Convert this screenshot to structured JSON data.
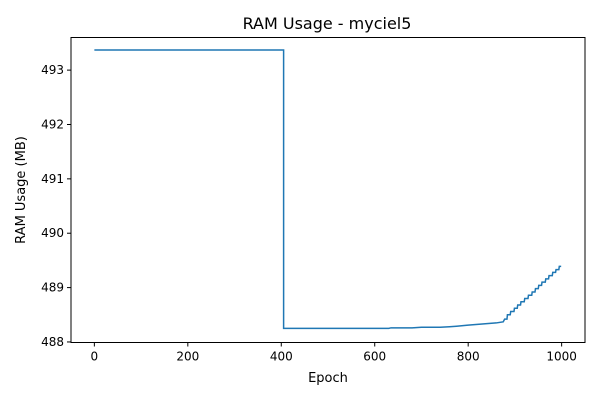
{
  "chart_data": {
    "type": "line",
    "title": "RAM Usage - myciel5",
    "xlabel": "Epoch",
    "ylabel": "RAM Usage (MB)",
    "xlim": [
      -50,
      1050
    ],
    "ylim": [
      487.99,
      493.6
    ],
    "xticks": [
      0,
      200,
      400,
      600,
      800,
      1000
    ],
    "yticks": [
      488,
      489,
      490,
      491,
      492,
      493
    ],
    "grid": false,
    "line_color": "#1f77b4",
    "series": [
      {
        "points": [
          [
            0,
            493.37
          ],
          [
            405,
            493.37
          ],
          [
            405,
            488.25
          ],
          [
            630,
            488.25
          ],
          [
            635,
            488.26
          ],
          [
            680,
            488.26
          ],
          [
            700,
            488.27
          ],
          [
            740,
            488.27
          ],
          [
            760,
            488.28
          ],
          [
            775,
            488.29
          ],
          [
            800,
            488.31
          ],
          [
            830,
            488.33
          ],
          [
            860,
            488.35
          ],
          [
            875,
            488.37
          ],
          [
            878,
            488.42
          ],
          [
            883,
            488.42
          ],
          [
            884,
            488.5
          ],
          [
            890,
            488.5
          ],
          [
            891,
            488.56
          ],
          [
            898,
            488.56
          ],
          [
            899,
            488.62
          ],
          [
            905,
            488.62
          ],
          [
            906,
            488.68
          ],
          [
            912,
            488.68
          ],
          [
            913,
            488.74
          ],
          [
            920,
            488.74
          ],
          [
            921,
            488.8
          ],
          [
            928,
            488.8
          ],
          [
            929,
            488.86
          ],
          [
            936,
            488.86
          ],
          [
            937,
            488.92
          ],
          [
            943,
            488.92
          ],
          [
            944,
            488.98
          ],
          [
            950,
            488.98
          ],
          [
            951,
            489.04
          ],
          [
            957,
            489.04
          ],
          [
            958,
            489.1
          ],
          [
            965,
            489.1
          ],
          [
            966,
            489.16
          ],
          [
            972,
            489.16
          ],
          [
            973,
            489.22
          ],
          [
            980,
            489.22
          ],
          [
            981,
            489.28
          ],
          [
            987,
            489.28
          ],
          [
            988,
            489.33
          ],
          [
            994,
            489.33
          ],
          [
            995,
            489.39
          ],
          [
            999,
            489.39
          ]
        ]
      }
    ]
  }
}
